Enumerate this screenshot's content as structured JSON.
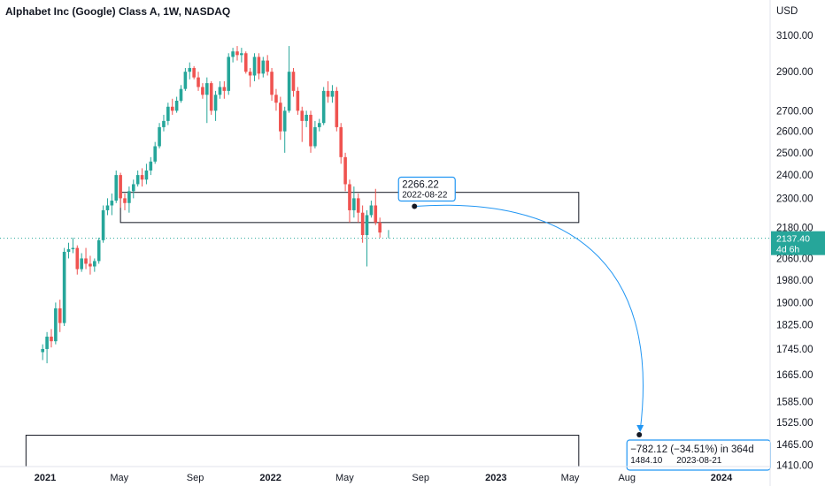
{
  "header": {
    "title": "Alphabet Inc (Google) Class A, 1W, NASDAQ",
    "currency": "USD"
  },
  "chart_data": {
    "type": "candlestick",
    "title": "Alphabet Inc (Google) Class A, 1W, NASDAQ",
    "y_axis": {
      "unit": "USD",
      "ticks": [
        3100,
        2900,
        2700,
        2600,
        2500,
        2400,
        2300,
        2180,
        2060,
        1980,
        1900,
        1825,
        1745,
        1665,
        1585,
        1525,
        1465,
        1410
      ],
      "tick_labels": [
        "3100.00",
        "2900.00",
        "2700.00",
        "2600.00",
        "2500.00",
        "2400.00",
        "2300.00",
        "2180.00",
        "2060.00",
        "1980.00",
        "1900.00",
        "1825.00",
        "1745.00",
        "1665.00",
        "1585.00",
        "1525.00",
        "1465.00",
        "1410.00"
      ],
      "range": [
        1400,
        3230
      ],
      "scale": "log"
    },
    "x_axis": {
      "labels": [
        {
          "text": "2021",
          "date": "2021-01-01",
          "bold": true
        },
        {
          "text": "May",
          "date": "2021-05-01",
          "bold": false
        },
        {
          "text": "Sep",
          "date": "2021-09-01",
          "bold": false
        },
        {
          "text": "2022",
          "date": "2022-01-01",
          "bold": true
        },
        {
          "text": "May",
          "date": "2022-05-01",
          "bold": false
        },
        {
          "text": "Sep",
          "date": "2022-09-01",
          "bold": false
        },
        {
          "text": "2023",
          "date": "2023-01-01",
          "bold": true
        },
        {
          "text": "May",
          "date": "2023-05-01",
          "bold": false
        },
        {
          "text": "Aug",
          "date": "2023-08-01",
          "bold": false
        },
        {
          "text": "2024",
          "date": "2024-01-01",
          "bold": true
        }
      ]
    },
    "grid": false,
    "colors": {
      "up": "#26a69a",
      "down": "#ef5350",
      "projection": "#2196f3",
      "last_price": "#26a69a"
    },
    "last_price": {
      "value": "2137.40",
      "countdown": "4d 6h",
      "raw": 2137.4
    },
    "candles": [
      {
        "d": "2020-12-28",
        "o": 1735,
        "h": 1760,
        "l": 1710,
        "c": 1745
      },
      {
        "d": "2021-01-04",
        "o": 1745,
        "h": 1800,
        "l": 1700,
        "c": 1785
      },
      {
        "d": "2021-01-11",
        "o": 1785,
        "h": 1810,
        "l": 1750,
        "c": 1770
      },
      {
        "d": "2021-01-18",
        "o": 1770,
        "h": 1900,
        "l": 1760,
        "c": 1880
      },
      {
        "d": "2021-01-25",
        "o": 1880,
        "h": 1910,
        "l": 1800,
        "c": 1830
      },
      {
        "d": "2021-02-01",
        "o": 1830,
        "h": 2100,
        "l": 1820,
        "c": 2085
      },
      {
        "d": "2021-02-08",
        "o": 2085,
        "h": 2120,
        "l": 2060,
        "c": 2095
      },
      {
        "d": "2021-02-15",
        "o": 2095,
        "h": 2140,
        "l": 2080,
        "c": 2100
      },
      {
        "d": "2021-02-22",
        "o": 2100,
        "h": 2110,
        "l": 2000,
        "c": 2020
      },
      {
        "d": "2021-03-01",
        "o": 2020,
        "h": 2080,
        "l": 2010,
        "c": 2060
      },
      {
        "d": "2021-03-08",
        "o": 2060,
        "h": 2100,
        "l": 2020,
        "c": 2040
      },
      {
        "d": "2021-03-15",
        "o": 2040,
        "h": 2070,
        "l": 2000,
        "c": 2030
      },
      {
        "d": "2021-03-22",
        "o": 2030,
        "h": 2060,
        "l": 2010,
        "c": 2050
      },
      {
        "d": "2021-03-29",
        "o": 2050,
        "h": 2140,
        "l": 2040,
        "c": 2130
      },
      {
        "d": "2021-04-05",
        "o": 2130,
        "h": 2270,
        "l": 2120,
        "c": 2250
      },
      {
        "d": "2021-04-12",
        "o": 2250,
        "h": 2300,
        "l": 2230,
        "c": 2270
      },
      {
        "d": "2021-04-19",
        "o": 2270,
        "h": 2320,
        "l": 2230,
        "c": 2290
      },
      {
        "d": "2021-04-26",
        "o": 2290,
        "h": 2420,
        "l": 2280,
        "c": 2400
      },
      {
        "d": "2021-05-03",
        "o": 2400,
        "h": 2410,
        "l": 2260,
        "c": 2300
      },
      {
        "d": "2021-05-10",
        "o": 2300,
        "h": 2320,
        "l": 2250,
        "c": 2280
      },
      {
        "d": "2021-05-17",
        "o": 2280,
        "h": 2350,
        "l": 2240,
        "c": 2330
      },
      {
        "d": "2021-05-24",
        "o": 2330,
        "h": 2380,
        "l": 2300,
        "c": 2360
      },
      {
        "d": "2021-05-31",
        "o": 2360,
        "h": 2420,
        "l": 2350,
        "c": 2400
      },
      {
        "d": "2021-06-07",
        "o": 2400,
        "h": 2430,
        "l": 2350,
        "c": 2380
      },
      {
        "d": "2021-06-14",
        "o": 2380,
        "h": 2450,
        "l": 2360,
        "c": 2420
      },
      {
        "d": "2021-06-21",
        "o": 2420,
        "h": 2480,
        "l": 2400,
        "c": 2460
      },
      {
        "d": "2021-06-28",
        "o": 2460,
        "h": 2550,
        "l": 2450,
        "c": 2530
      },
      {
        "d": "2021-07-05",
        "o": 2530,
        "h": 2640,
        "l": 2520,
        "c": 2620
      },
      {
        "d": "2021-07-12",
        "o": 2620,
        "h": 2680,
        "l": 2600,
        "c": 2650
      },
      {
        "d": "2021-07-19",
        "o": 2650,
        "h": 2740,
        "l": 2630,
        "c": 2720
      },
      {
        "d": "2021-07-26",
        "o": 2720,
        "h": 2760,
        "l": 2680,
        "c": 2700
      },
      {
        "d": "2021-08-02",
        "o": 2700,
        "h": 2770,
        "l": 2690,
        "c": 2750
      },
      {
        "d": "2021-08-09",
        "o": 2750,
        "h": 2830,
        "l": 2740,
        "c": 2810
      },
      {
        "d": "2021-08-16",
        "o": 2810,
        "h": 2920,
        "l": 2800,
        "c": 2900
      },
      {
        "d": "2021-08-23",
        "o": 2900,
        "h": 2950,
        "l": 2860,
        "c": 2920
      },
      {
        "d": "2021-08-30",
        "o": 2920,
        "h": 2930,
        "l": 2860,
        "c": 2870
      },
      {
        "d": "2021-09-06",
        "o": 2870,
        "h": 2900,
        "l": 2800,
        "c": 2820
      },
      {
        "d": "2021-09-13",
        "o": 2820,
        "h": 2840,
        "l": 2760,
        "c": 2780
      },
      {
        "d": "2021-09-20",
        "o": 2780,
        "h": 2870,
        "l": 2640,
        "c": 2840
      },
      {
        "d": "2021-09-27",
        "o": 2840,
        "h": 2850,
        "l": 2680,
        "c": 2700
      },
      {
        "d": "2021-10-04",
        "o": 2700,
        "h": 2800,
        "l": 2650,
        "c": 2780
      },
      {
        "d": "2021-10-11",
        "o": 2780,
        "h": 2850,
        "l": 2760,
        "c": 2820
      },
      {
        "d": "2021-10-18",
        "o": 2820,
        "h": 2850,
        "l": 2760,
        "c": 2800
      },
      {
        "d": "2021-10-25",
        "o": 2800,
        "h": 3000,
        "l": 2780,
        "c": 2980
      },
      {
        "d": "2021-11-01",
        "o": 2980,
        "h": 3030,
        "l": 2950,
        "c": 3010
      },
      {
        "d": "2021-11-08",
        "o": 3010,
        "h": 3040,
        "l": 2960,
        "c": 2990
      },
      {
        "d": "2021-11-15",
        "o": 2990,
        "h": 3030,
        "l": 2950,
        "c": 3000
      },
      {
        "d": "2021-11-22",
        "o": 3000,
        "h": 3010,
        "l": 2890,
        "c": 2900
      },
      {
        "d": "2021-11-29",
        "o": 2900,
        "h": 2920,
        "l": 2820,
        "c": 2880
      },
      {
        "d": "2021-12-06",
        "o": 2880,
        "h": 3000,
        "l": 2850,
        "c": 2980
      },
      {
        "d": "2021-12-13",
        "o": 2980,
        "h": 3000,
        "l": 2860,
        "c": 2890
      },
      {
        "d": "2021-12-20",
        "o": 2890,
        "h": 2980,
        "l": 2870,
        "c": 2960
      },
      {
        "d": "2021-12-27",
        "o": 2960,
        "h": 2990,
        "l": 2880,
        "c": 2900
      },
      {
        "d": "2022-01-03",
        "o": 2900,
        "h": 2920,
        "l": 2750,
        "c": 2780
      },
      {
        "d": "2022-01-10",
        "o": 2780,
        "h": 2810,
        "l": 2700,
        "c": 2740
      },
      {
        "d": "2022-01-17",
        "o": 2740,
        "h": 2770,
        "l": 2560,
        "c": 2600
      },
      {
        "d": "2022-01-24",
        "o": 2600,
        "h": 2720,
        "l": 2500,
        "c": 2700
      },
      {
        "d": "2022-01-31",
        "o": 2700,
        "h": 3040,
        "l": 2690,
        "c": 2900
      },
      {
        "d": "2022-02-07",
        "o": 2900,
        "h": 2920,
        "l": 2770,
        "c": 2800
      },
      {
        "d": "2022-02-14",
        "o": 2800,
        "h": 2820,
        "l": 2680,
        "c": 2700
      },
      {
        "d": "2022-02-21",
        "o": 2700,
        "h": 2720,
        "l": 2550,
        "c": 2650
      },
      {
        "d": "2022-02-28",
        "o": 2650,
        "h": 2700,
        "l": 2620,
        "c": 2680
      },
      {
        "d": "2022-03-07",
        "o": 2680,
        "h": 2700,
        "l": 2500,
        "c": 2530
      },
      {
        "d": "2022-03-14",
        "o": 2530,
        "h": 2650,
        "l": 2520,
        "c": 2620
      },
      {
        "d": "2022-03-21",
        "o": 2620,
        "h": 2660,
        "l": 2600,
        "c": 2640
      },
      {
        "d": "2022-03-28",
        "o": 2640,
        "h": 2820,
        "l": 2630,
        "c": 2800
      },
      {
        "d": "2022-04-04",
        "o": 2800,
        "h": 2850,
        "l": 2740,
        "c": 2770
      },
      {
        "d": "2022-04-11",
        "o": 2770,
        "h": 2830,
        "l": 2740,
        "c": 2800
      },
      {
        "d": "2022-04-18",
        "o": 2800,
        "h": 2820,
        "l": 2600,
        "c": 2620
      },
      {
        "d": "2022-04-25",
        "o": 2620,
        "h": 2640,
        "l": 2450,
        "c": 2480
      },
      {
        "d": "2022-05-02",
        "o": 2480,
        "h": 2500,
        "l": 2330,
        "c": 2360
      },
      {
        "d": "2022-05-09",
        "o": 2360,
        "h": 2380,
        "l": 2200,
        "c": 2250
      },
      {
        "d": "2022-05-16",
        "o": 2250,
        "h": 2350,
        "l": 2220,
        "c": 2300
      },
      {
        "d": "2022-05-23",
        "o": 2300,
        "h": 2320,
        "l": 2200,
        "c": 2240
      },
      {
        "d": "2022-05-30",
        "o": 2240,
        "h": 2270,
        "l": 2120,
        "c": 2150
      },
      {
        "d": "2022-06-06",
        "o": 2150,
        "h": 2250,
        "l": 2030,
        "c": 2230
      },
      {
        "d": "2022-06-13",
        "o": 2230,
        "h": 2290,
        "l": 2220,
        "c": 2270
      },
      {
        "d": "2022-06-20",
        "o": 2270,
        "h": 2340,
        "l": 2190,
        "c": 2200
      },
      {
        "d": "2022-06-27",
        "o": 2200,
        "h": 2220,
        "l": 2140,
        "c": 2160
      }
    ],
    "zones": [
      {
        "from": "2021-05-03",
        "to": "2023-05-15",
        "top": 2325,
        "bottom": 2200
      },
      {
        "from": "2020-12-01",
        "to": "2023-05-15",
        "top": 1490,
        "bottom": 1380
      }
    ],
    "projection": {
      "start": {
        "price": "2266.22",
        "date": "2022-08-22",
        "raw": 2266.22
      },
      "end": {
        "price": "1484.10",
        "date": "2023-08-21",
        "raw": 1484.1
      },
      "change_label": "−782.12 (−34.51%) in 364d"
    }
  }
}
